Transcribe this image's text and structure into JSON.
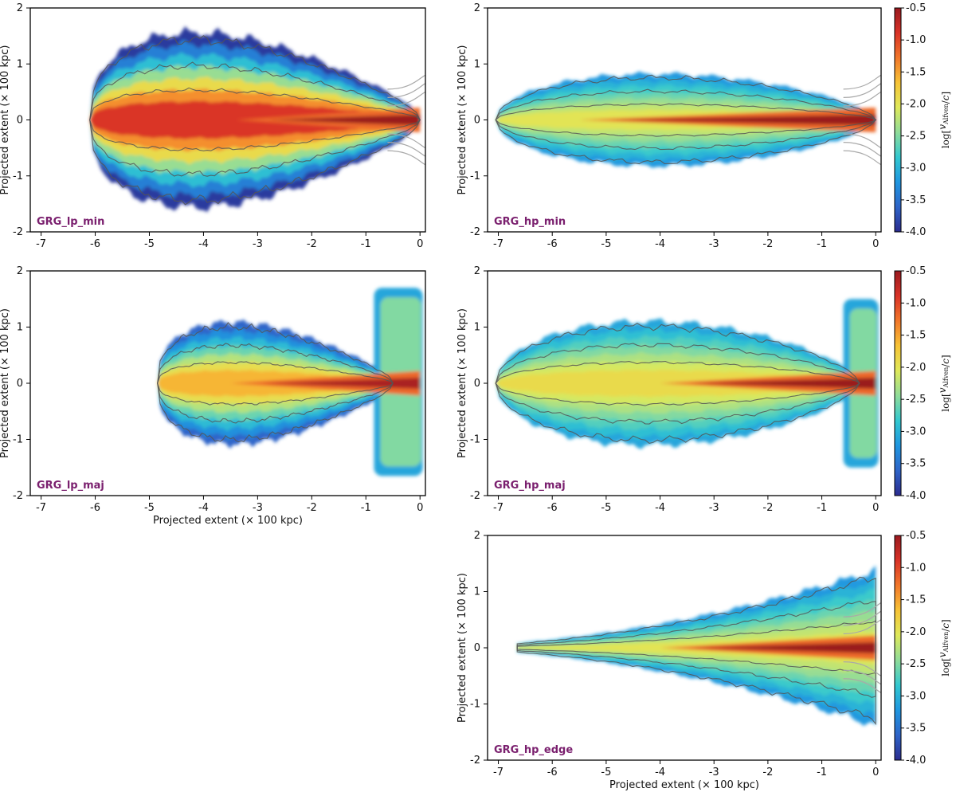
{
  "colors": {
    "panel_title": "#7a1f6e",
    "contour": "#555555",
    "ghost_contour": "#a9a9a9"
  },
  "colorbar": {
    "label": "log[v_Alfven / c]",
    "label_prefix": "log[",
    "label_num": "v",
    "label_sub": "Alfven",
    "label_den": "c",
    "label_suffix": "]",
    "range": [
      -4.0,
      -0.5
    ],
    "tick_values": [
      -0.5,
      -1.0,
      -1.5,
      -2.0,
      -2.5,
      -3.0,
      -3.5,
      -4.0
    ],
    "tick_labels": [
      "-0.5",
      "-1.0",
      "-1.5",
      "-2.0",
      "-2.5",
      "-3.0",
      "-3.5",
      "-4.0"
    ],
    "stops": [
      "#2b2c8f",
      "#2e64c8",
      "#1f96e0",
      "#32c8d0",
      "#8fdc9a",
      "#dfe95a",
      "#f7c336",
      "#f2772a",
      "#d93227",
      "#9a1a1f"
    ]
  },
  "chart_data": [
    {
      "type": "heatmap",
      "id": "GRG_lp_min",
      "title": "GRG_lp_min",
      "xlabel": "",
      "ylabel": "Projected extent (× 100 kpc)",
      "xlim": [
        -7.2,
        0.1
      ],
      "ylim": [
        -2,
        2
      ],
      "xticks": [
        -7,
        -6,
        -5,
        -4,
        -3,
        -2,
        -1,
        0
      ],
      "xtick_labels": [
        "-7",
        "-6",
        "-5",
        "-4",
        "-3",
        "-2",
        "-1",
        "0"
      ],
      "yticks": [
        -2,
        -1,
        0,
        1,
        2
      ],
      "ytick_labels": [
        "-2",
        "-1",
        "0",
        "1",
        "2"
      ],
      "colorbar": false,
      "lobe": {
        "head_x": -6.1,
        "tail_x": 0.0,
        "max_half_width": 1.65,
        "shape": "cocoon",
        "core": -0.9,
        "edge": -3.9
      },
      "jet": {
        "from_x": -3.4,
        "to_x": 0.0,
        "value": -0.5
      },
      "wings": null,
      "ghost_outline": "right"
    },
    {
      "type": "heatmap",
      "id": "GRG_hp_min",
      "title": "GRG_hp_min",
      "xlabel": "",
      "ylabel": "Projected extent (× 100 kpc)",
      "xlim": [
        -7.2,
        0.1
      ],
      "ylim": [
        -2,
        2
      ],
      "xticks": [
        -7,
        -6,
        -5,
        -4,
        -3,
        -2,
        -1,
        0
      ],
      "xtick_labels": [
        "-7",
        "-6",
        "-5",
        "-4",
        "-3",
        "-2",
        "-1",
        "0"
      ],
      "yticks": [
        -2,
        -1,
        0,
        1,
        2
      ],
      "ytick_labels": [
        "-2",
        "-1",
        "0",
        "1",
        "2"
      ],
      "colorbar": true,
      "lobe": {
        "head_x": -7.05,
        "tail_x": 0.0,
        "max_half_width": 0.82,
        "shape": "spindle",
        "core": -2.0,
        "edge": -3.2
      },
      "jet": {
        "from_x": -5.5,
        "to_x": 0.0,
        "value": -0.5
      },
      "wings": null,
      "ghost_outline": "right"
    },
    {
      "type": "heatmap",
      "id": "GRG_lp_maj",
      "title": "GRG_lp_maj",
      "xlabel": "Projected extent (× 100 kpc)",
      "ylabel": "Projected extent (× 100 kpc)",
      "xlim": [
        -7.2,
        0.1
      ],
      "ylim": [
        -2,
        2
      ],
      "xticks": [
        -7,
        -6,
        -5,
        -4,
        -3,
        -2,
        -1,
        0
      ],
      "xtick_labels": [
        "-7",
        "-6",
        "-5",
        "-4",
        "-3",
        "-2",
        "-1",
        "0"
      ],
      "yticks": [
        -2,
        -1,
        0,
        1,
        2
      ],
      "ytick_labels": [
        "-2",
        "-1",
        "0",
        "1",
        "2"
      ],
      "colorbar": false,
      "lobe": {
        "head_x": -4.85,
        "tail_x": -0.5,
        "max_half_width": 1.15,
        "shape": "cocoon",
        "core": -1.6,
        "edge": -3.6
      },
      "jet": {
        "from_x": -3.5,
        "to_x": 0.0,
        "value": -0.6
      },
      "wings": {
        "from_x": -0.85,
        "to_x": 0.05,
        "y_top": 1.7,
        "y_bottom": -1.65
      },
      "ghost_outline": "none"
    },
    {
      "type": "heatmap",
      "id": "GRG_hp_maj",
      "title": "GRG_hp_maj",
      "xlabel": "",
      "ylabel": "Projected extent (× 100 kpc)",
      "xlim": [
        -7.2,
        0.1
      ],
      "ylim": [
        -2,
        2
      ],
      "xticks": [
        -7,
        -6,
        -5,
        -4,
        -3,
        -2,
        -1,
        0
      ],
      "xtick_labels": [
        "-7",
        "-6",
        "-5",
        "-4",
        "-3",
        "-2",
        "-1",
        "0"
      ],
      "yticks": [
        -2,
        -1,
        0,
        1,
        2
      ],
      "ytick_labels": [
        "-2",
        "-1",
        "0",
        "1",
        "2"
      ],
      "colorbar": true,
      "lobe": {
        "head_x": -7.05,
        "tail_x": -0.3,
        "max_half_width": 1.1,
        "shape": "spindle",
        "core": -1.9,
        "edge": -3.1
      },
      "jet": {
        "from_x": -4.0,
        "to_x": 0.0,
        "value": -0.5
      },
      "wings": {
        "from_x": -0.6,
        "to_x": 0.05,
        "y_top": 1.5,
        "y_bottom": -1.5
      },
      "ghost_outline": "none"
    },
    {
      "type": "heatmap",
      "id": "GRG_hp_edge",
      "title": "GRG_hp_edge",
      "xlabel": "Projected extent (× 100 kpc)",
      "ylabel": "Projected extent (× 100 kpc)",
      "xlim": [
        -7.2,
        0.1
      ],
      "ylim": [
        -2,
        2
      ],
      "xticks": [
        -7,
        -6,
        -5,
        -4,
        -3,
        -2,
        -1,
        0
      ],
      "xtick_labels": [
        "-7",
        "-6",
        "-5",
        "-4",
        "-3",
        "-2",
        "-1",
        "0"
      ],
      "yticks": [
        -2,
        -1,
        0,
        1,
        2
      ],
      "ytick_labels": [
        "-2",
        "-1",
        "0",
        "1",
        "2"
      ],
      "colorbar": true,
      "lobe": {
        "head_x": -6.65,
        "tail_x": 0.0,
        "max_half_width": 1.3,
        "shape": "wedge",
        "core": -2.0,
        "edge": -3.2
      },
      "jet": {
        "from_x": -4.0,
        "to_x": 0.0,
        "value": -0.5
      },
      "wings": null,
      "ghost_outline": "right"
    }
  ]
}
